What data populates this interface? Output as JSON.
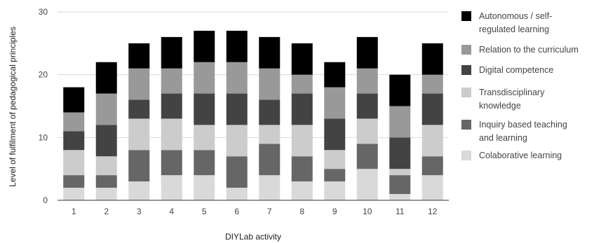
{
  "chart_data": {
    "type": "bar",
    "stacked": true,
    "xlabel": "DIYLab activity",
    "ylabel": "Level of fulfilment of pedagogical principles",
    "ylim": [
      0,
      30
    ],
    "yticks": [
      0,
      10,
      20,
      30
    ],
    "grid": true,
    "legend_position": "right",
    "categories": [
      "1",
      "2",
      "3",
      "4",
      "5",
      "6",
      "7",
      "8",
      "9",
      "10",
      "11",
      "12"
    ],
    "series": [
      {
        "name": "Colaborative learning",
        "color": "#d9d9d9",
        "values": [
          2,
          2,
          3,
          4,
          4,
          2,
          4,
          3,
          3,
          5,
          1,
          4
        ]
      },
      {
        "name": "Inquiry based teaching and learning",
        "color": "#666666",
        "values": [
          2,
          2,
          5,
          4,
          4,
          5,
          5,
          4,
          2,
          4,
          3,
          3
        ]
      },
      {
        "name": "Transdisciplinary knowledge",
        "color": "#cccccc",
        "values": [
          4,
          3,
          5,
          5,
          4,
          5,
          3,
          5,
          3,
          4,
          1,
          5
        ]
      },
      {
        "name": "Digital competence",
        "color": "#434343",
        "values": [
          3,
          5,
          3,
          4,
          5,
          5,
          4,
          5,
          5,
          4,
          5,
          5
        ]
      },
      {
        "name": "Relation to the curriculum",
        "color": "#999999",
        "values": [
          3,
          5,
          5,
          4,
          5,
          5,
          5,
          3,
          5,
          4,
          5,
          3
        ]
      },
      {
        "name": "Autonomous / self-regulated learning",
        "color": "#000000",
        "values": [
          4,
          5,
          4,
          5,
          5,
          5,
          5,
          5,
          4,
          5,
          5,
          5
        ]
      }
    ],
    "legend": [
      {
        "lines": [
          "Autonomous / self-",
          "regulated learning"
        ],
        "color": "#000000"
      },
      {
        "lines": [
          "Relation to the curriculum"
        ],
        "color": "#999999"
      },
      {
        "lines": [
          "Digital competence"
        ],
        "color": "#434343"
      },
      {
        "lines": [
          "Transdisciplinary",
          "knowledge"
        ],
        "color": "#cccccc"
      },
      {
        "lines": [
          "Inquiry based teaching",
          "and learning"
        ],
        "color": "#666666"
      },
      {
        "lines": [
          "Colaborative learning"
        ],
        "color": "#d9d9d9"
      }
    ]
  }
}
